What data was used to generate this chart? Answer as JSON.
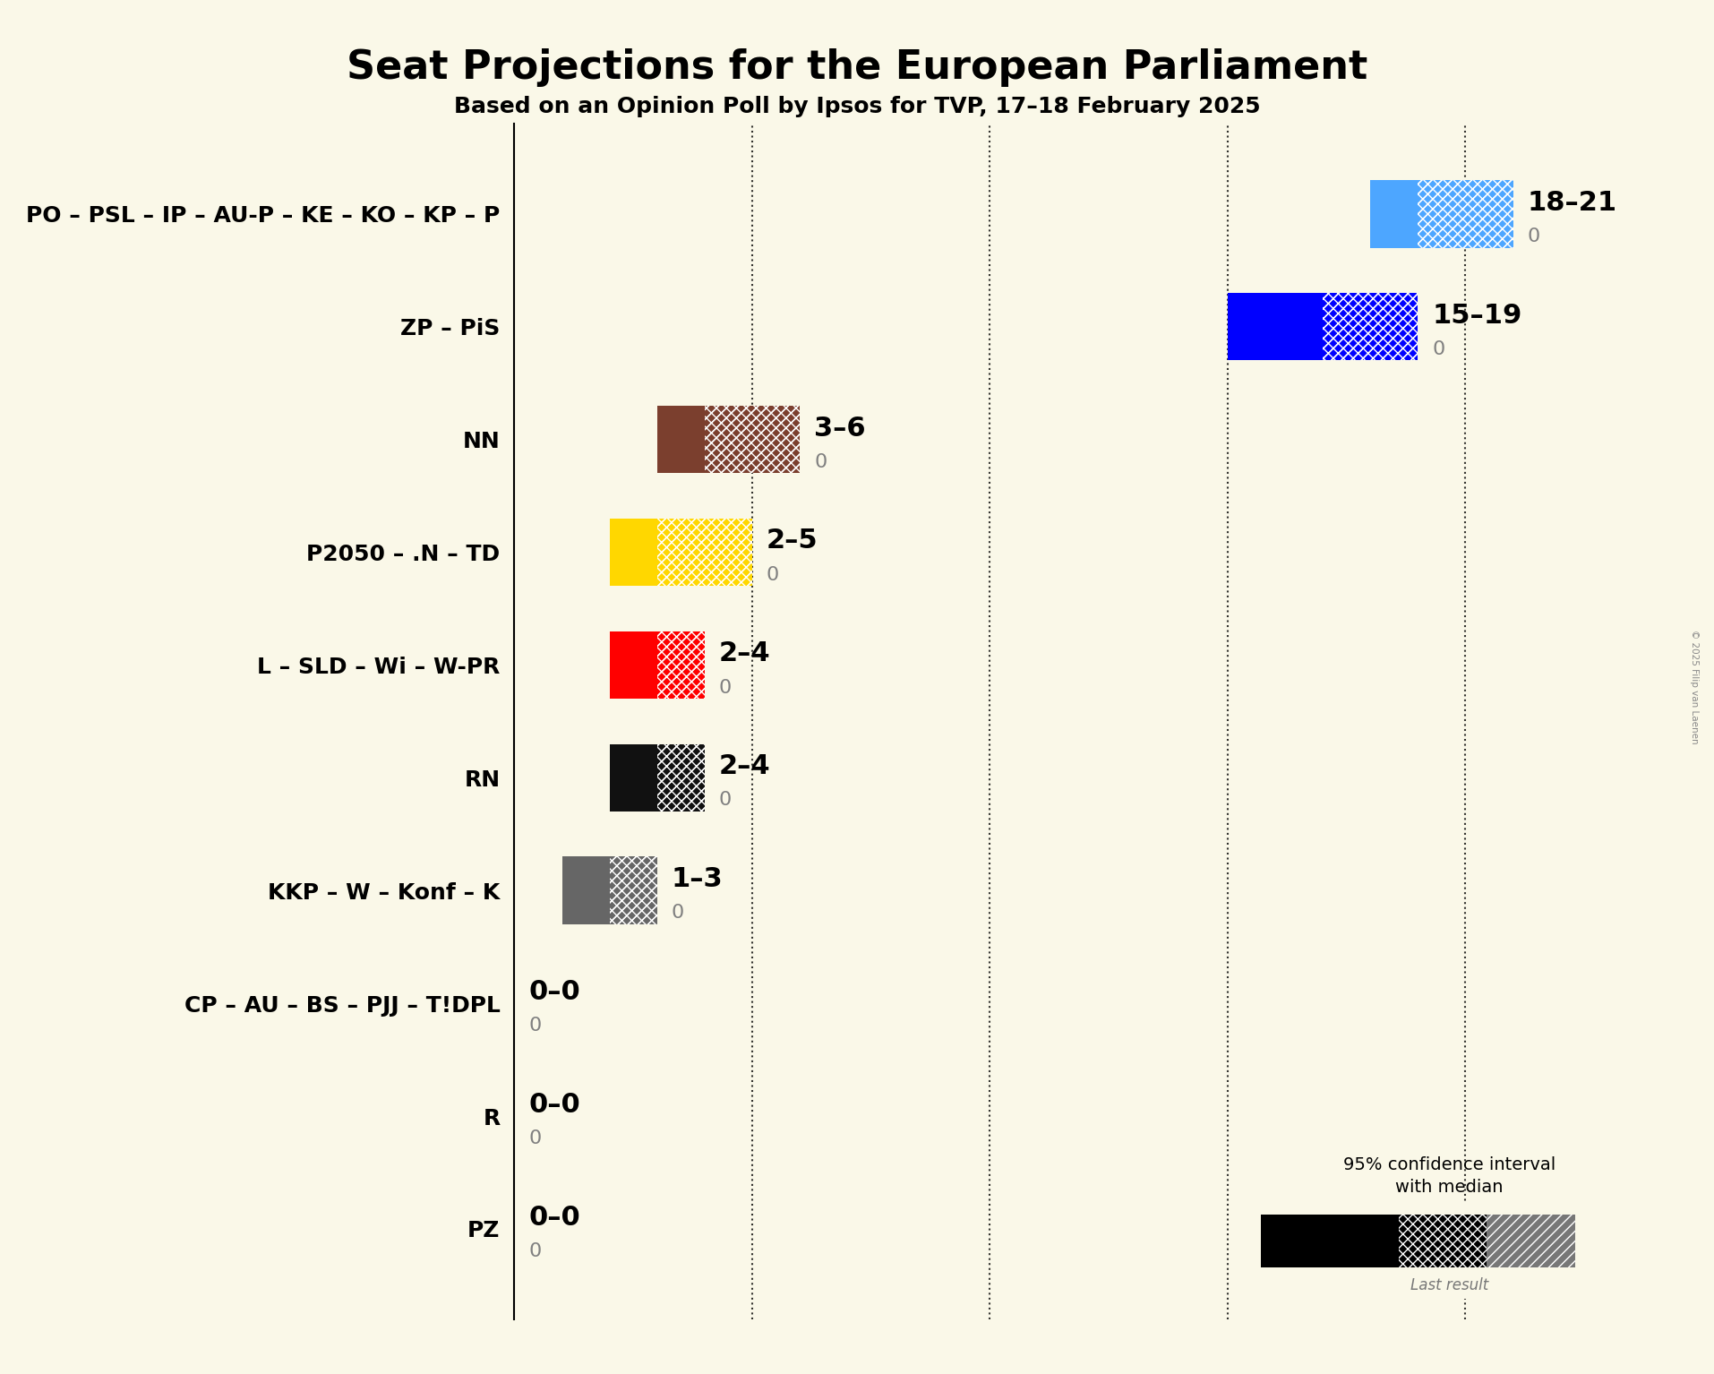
{
  "title": "Seat Projections for the European Parliament",
  "subtitle": "Based on an Opinion Poll by Ipsos for TVP, 17–18 February 2025",
  "copyright": "© 2025 Filip van Laenen",
  "background_color": "#faf8e8",
  "parties": [
    {
      "name": "PO – PSL – IP – AU-P – KE – KO – KP – P",
      "min": 18,
      "max": 21,
      "median": 19,
      "last": 0,
      "color": "#4da6ff",
      "label": "18–21"
    },
    {
      "name": "ZP – PiS",
      "min": 15,
      "max": 19,
      "median": 17,
      "last": 0,
      "color": "#0000ff",
      "label": "15–19"
    },
    {
      "name": "NN",
      "min": 3,
      "max": 6,
      "median": 4,
      "last": 0,
      "color": "#7b3f2e",
      "label": "3–6"
    },
    {
      "name": "P2050 – .N – TD",
      "min": 2,
      "max": 5,
      "median": 3,
      "last": 0,
      "color": "#ffd700",
      "label": "2–5"
    },
    {
      "name": "L – SLD – Wi – W-PR",
      "min": 2,
      "max": 4,
      "median": 3,
      "last": 0,
      "color": "#ff0000",
      "label": "2–4"
    },
    {
      "name": "RN",
      "min": 2,
      "max": 4,
      "median": 3,
      "last": 0,
      "color": "#111111",
      "label": "2–4"
    },
    {
      "name": "KKP – W – Konf – K",
      "min": 1,
      "max": 3,
      "median": 2,
      "last": 0,
      "color": "#666666",
      "label": "1–3"
    },
    {
      "name": "CP – AU – BS – PJJ – T!DPL",
      "min": 0,
      "max": 0,
      "median": 0,
      "last": 0,
      "color": "#888888",
      "label": "0–0"
    },
    {
      "name": "R",
      "min": 0,
      "max": 0,
      "median": 0,
      "last": 0,
      "color": "#888888",
      "label": "0–0"
    },
    {
      "name": "PZ",
      "min": 0,
      "max": 0,
      "median": 0,
      "last": 0,
      "color": "#888888",
      "label": "0–0"
    }
  ],
  "xmax": 22,
  "dotted_lines": [
    5,
    10,
    15,
    20
  ],
  "bar_height": 0.6,
  "label_fontsize": 22,
  "last_fontsize": 16,
  "ytick_fontsize": 18,
  "title_fontsize": 32,
  "subtitle_fontsize": 18
}
